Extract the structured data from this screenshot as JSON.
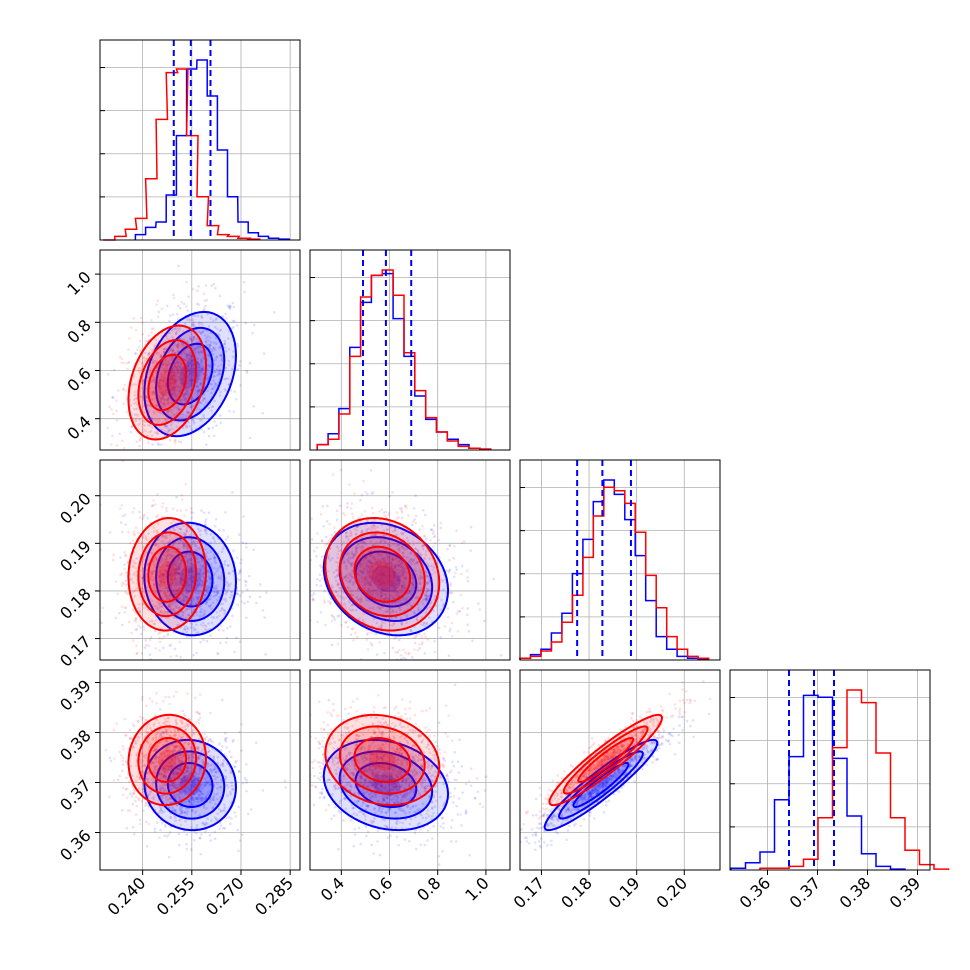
{
  "chart_data": {
    "type": "corner",
    "series": [
      {
        "name": "",
        "color": "#ff0000"
      },
      {
        "name": "",
        "color": "#0000ff"
      }
    ],
    "grid": true,
    "parameters": [
      {
        "range": [
          0.227,
          0.288
        ],
        "ticks": [
          0.24,
          0.255,
          0.27,
          0.285
        ],
        "tick_labels": [
          "0.240",
          "0.255",
          "0.270",
          "0.285"
        ],
        "axes_with_labels": [
          "x"
        ],
        "quantiles_blue": [
          0.2495,
          0.2547,
          0.2607
        ]
      },
      {
        "range": [
          0.27,
          1.1
        ],
        "ticks": [
          0.4,
          0.6,
          0.8,
          1.0
        ],
        "tick_labels": [
          "0.4",
          "0.6",
          "0.8",
          "1.0"
        ],
        "axes_with_labels": [
          "x",
          "y"
        ],
        "quantiles_blue": [
          0.49,
          0.585,
          0.69
        ]
      },
      {
        "range": [
          0.1655,
          0.2075
        ],
        "ticks": [
          0.17,
          0.18,
          0.19,
          0.2
        ],
        "tick_labels": [
          "0.17",
          "0.18",
          "0.19",
          "0.20"
        ],
        "axes_with_labels": [
          "x",
          "y"
        ],
        "quantiles_blue": [
          0.1775,
          0.1828,
          0.1888
        ]
      },
      {
        "range": [
          0.3525,
          0.3925
        ],
        "ticks": [
          0.36,
          0.37,
          0.38,
          0.39
        ],
        "tick_labels": [
          "0.36",
          "0.37",
          "0.38",
          "0.39"
        ],
        "axes_with_labels": [
          "x",
          "y"
        ],
        "quantiles_blue": [
          0.3643,
          0.3693,
          0.3733
        ]
      }
    ],
    "histograms": [
      {
        "red": [
          [
            0.228,
            0.0
          ],
          [
            0.2315,
            0.02
          ],
          [
            0.2347,
            0.06
          ],
          [
            0.2378,
            0.12
          ],
          [
            0.2409,
            0.34
          ],
          [
            0.2441,
            0.67
          ],
          [
            0.2472,
            0.93
          ],
          [
            0.2503,
            0.95
          ],
          [
            0.2534,
            0.58
          ],
          [
            0.2566,
            0.24
          ],
          [
            0.2597,
            0.08
          ],
          [
            0.2628,
            0.03
          ],
          [
            0.2659,
            0.02
          ],
          [
            0.2691,
            0.01
          ],
          [
            0.2722,
            0.005
          ]
        ],
        "blue": [
          [
            0.2378,
            0.03
          ],
          [
            0.2409,
            0.07
          ],
          [
            0.2441,
            0.1
          ],
          [
            0.2472,
            0.25
          ],
          [
            0.2503,
            0.58
          ],
          [
            0.2534,
            0.95
          ],
          [
            0.2566,
            1.0
          ],
          [
            0.2597,
            0.8
          ],
          [
            0.2628,
            0.5
          ],
          [
            0.2659,
            0.24
          ],
          [
            0.2691,
            0.1
          ],
          [
            0.2722,
            0.04
          ],
          [
            0.2753,
            0.02
          ],
          [
            0.2784,
            0.01
          ],
          [
            0.2816,
            0.005
          ]
        ]
      },
      {
        "red": [
          [
            0.3,
            0.03
          ],
          [
            0.345,
            0.06
          ],
          [
            0.39,
            0.2
          ],
          [
            0.435,
            0.52
          ],
          [
            0.48,
            0.85
          ],
          [
            0.525,
            0.97
          ],
          [
            0.57,
            1.0
          ],
          [
            0.615,
            0.86
          ],
          [
            0.66,
            0.54
          ],
          [
            0.705,
            0.33
          ],
          [
            0.75,
            0.18
          ],
          [
            0.795,
            0.1
          ],
          [
            0.84,
            0.05
          ],
          [
            0.885,
            0.02
          ],
          [
            0.93,
            0.01
          ],
          [
            0.975,
            0.005
          ]
        ],
        "blue": [
          [
            0.3,
            0.03
          ],
          [
            0.345,
            0.09
          ],
          [
            0.39,
            0.23
          ],
          [
            0.435,
            0.57
          ],
          [
            0.48,
            0.82
          ],
          [
            0.525,
            0.97
          ],
          [
            0.57,
            0.98
          ],
          [
            0.615,
            0.73
          ],
          [
            0.66,
            0.52
          ],
          [
            0.705,
            0.3
          ],
          [
            0.75,
            0.17
          ],
          [
            0.795,
            0.1
          ],
          [
            0.84,
            0.06
          ],
          [
            0.885,
            0.03
          ],
          [
            0.93,
            0.01
          ],
          [
            0.975,
            0.005
          ]
        ]
      },
      {
        "red": [
          [
            0.1655,
            0.01
          ],
          [
            0.1677,
            0.02
          ],
          [
            0.1699,
            0.05
          ],
          [
            0.1721,
            0.1
          ],
          [
            0.1743,
            0.21
          ],
          [
            0.1765,
            0.36
          ],
          [
            0.1787,
            0.57
          ],
          [
            0.1809,
            0.8
          ],
          [
            0.1831,
            0.96
          ],
          [
            0.1853,
            0.94
          ],
          [
            0.1875,
            0.87
          ],
          [
            0.1897,
            0.71
          ],
          [
            0.1919,
            0.47
          ],
          [
            0.1941,
            0.29
          ],
          [
            0.1963,
            0.13
          ],
          [
            0.1985,
            0.06
          ],
          [
            0.2007,
            0.02
          ],
          [
            0.2029,
            0.01
          ]
        ],
        "blue": [
          [
            0.1655,
            0.01
          ],
          [
            0.1677,
            0.03
          ],
          [
            0.1699,
            0.06
          ],
          [
            0.1721,
            0.15
          ],
          [
            0.1743,
            0.26
          ],
          [
            0.1765,
            0.48
          ],
          [
            0.1787,
            0.67
          ],
          [
            0.1809,
            0.88
          ],
          [
            0.1831,
            1.0
          ],
          [
            0.1853,
            0.92
          ],
          [
            0.1875,
            0.78
          ],
          [
            0.1897,
            0.58
          ],
          [
            0.1919,
            0.33
          ],
          [
            0.1941,
            0.13
          ],
          [
            0.1963,
            0.06
          ],
          [
            0.1985,
            0.02
          ],
          [
            0.2007,
            0.01
          ],
          [
            0.2029,
            0.005
          ]
        ]
      },
      {
        "red": [
          [
            0.3585,
            0.01
          ],
          [
            0.3614,
            0.01
          ],
          [
            0.3643,
            0.02
          ],
          [
            0.3672,
            0.06
          ],
          [
            0.3701,
            0.29
          ],
          [
            0.373,
            0.68
          ],
          [
            0.3759,
            1.0
          ],
          [
            0.3788,
            0.93
          ],
          [
            0.3817,
            0.65
          ],
          [
            0.3846,
            0.29
          ],
          [
            0.3875,
            0.11
          ],
          [
            0.3904,
            0.03
          ],
          [
            0.3933,
            0.005
          ]
        ],
        "blue": [
          [
            0.3527,
            0.01
          ],
          [
            0.3556,
            0.04
          ],
          [
            0.3585,
            0.1
          ],
          [
            0.3614,
            0.39
          ],
          [
            0.3643,
            0.63
          ],
          [
            0.3672,
            0.97
          ],
          [
            0.3701,
            0.96
          ],
          [
            0.373,
            0.62
          ],
          [
            0.3759,
            0.3
          ],
          [
            0.3788,
            0.09
          ],
          [
            0.3817,
            0.02
          ],
          [
            0.3846,
            0.005
          ]
        ]
      }
    ],
    "pairs": [
      {
        "x": 0,
        "y": 1,
        "red": {
          "mean": [
            0.2475,
            0.55
          ],
          "sd": [
            0.0055,
            0.11
          ],
          "rho": 0.3
        },
        "blue": {
          "mean": [
            0.2545,
            0.585
          ],
          "sd": [
            0.0065,
            0.12
          ],
          "rho": 0.3
        }
      },
      {
        "x": 0,
        "y": 2,
        "red": {
          "mean": [
            0.2475,
            0.1835
          ],
          "sd": [
            0.0055,
            0.0055
          ],
          "rho": 0.05
        },
        "blue": {
          "mean": [
            0.2545,
            0.1825
          ],
          "sd": [
            0.0065,
            0.0055
          ],
          "rho": -0.05
        }
      },
      {
        "x": 1,
        "y": 2,
        "red": {
          "mean": [
            0.57,
            0.1835
          ],
          "sd": [
            0.11,
            0.0055
          ],
          "rho": -0.15
        },
        "blue": {
          "mean": [
            0.585,
            0.1825
          ],
          "sd": [
            0.12,
            0.0055
          ],
          "rho": -0.2
        }
      },
      {
        "x": 0,
        "y": 3,
        "red": {
          "mean": [
            0.2475,
            0.3745
          ],
          "sd": [
            0.0055,
            0.0042
          ],
          "rho": 0.05
        },
        "blue": {
          "mean": [
            0.2545,
            0.3695
          ],
          "sd": [
            0.0065,
            0.0042
          ],
          "rho": -0.05
        }
      },
      {
        "x": 1,
        "y": 3,
        "red": {
          "mean": [
            0.57,
            0.3745
          ],
          "sd": [
            0.11,
            0.0042
          ],
          "rho": -0.15
        },
        "blue": {
          "mean": [
            0.585,
            0.3695
          ],
          "sd": [
            0.12,
            0.0042
          ],
          "rho": -0.2
        }
      },
      {
        "x": 2,
        "y": 3,
        "red": {
          "mean": [
            0.1835,
            0.3745
          ],
          "sd": [
            0.0055,
            0.0042
          ],
          "rho": 0.93
        },
        "blue": {
          "mean": [
            0.1825,
            0.3695
          ],
          "sd": [
            0.0055,
            0.0042
          ],
          "rho": 0.93
        }
      }
    ]
  }
}
